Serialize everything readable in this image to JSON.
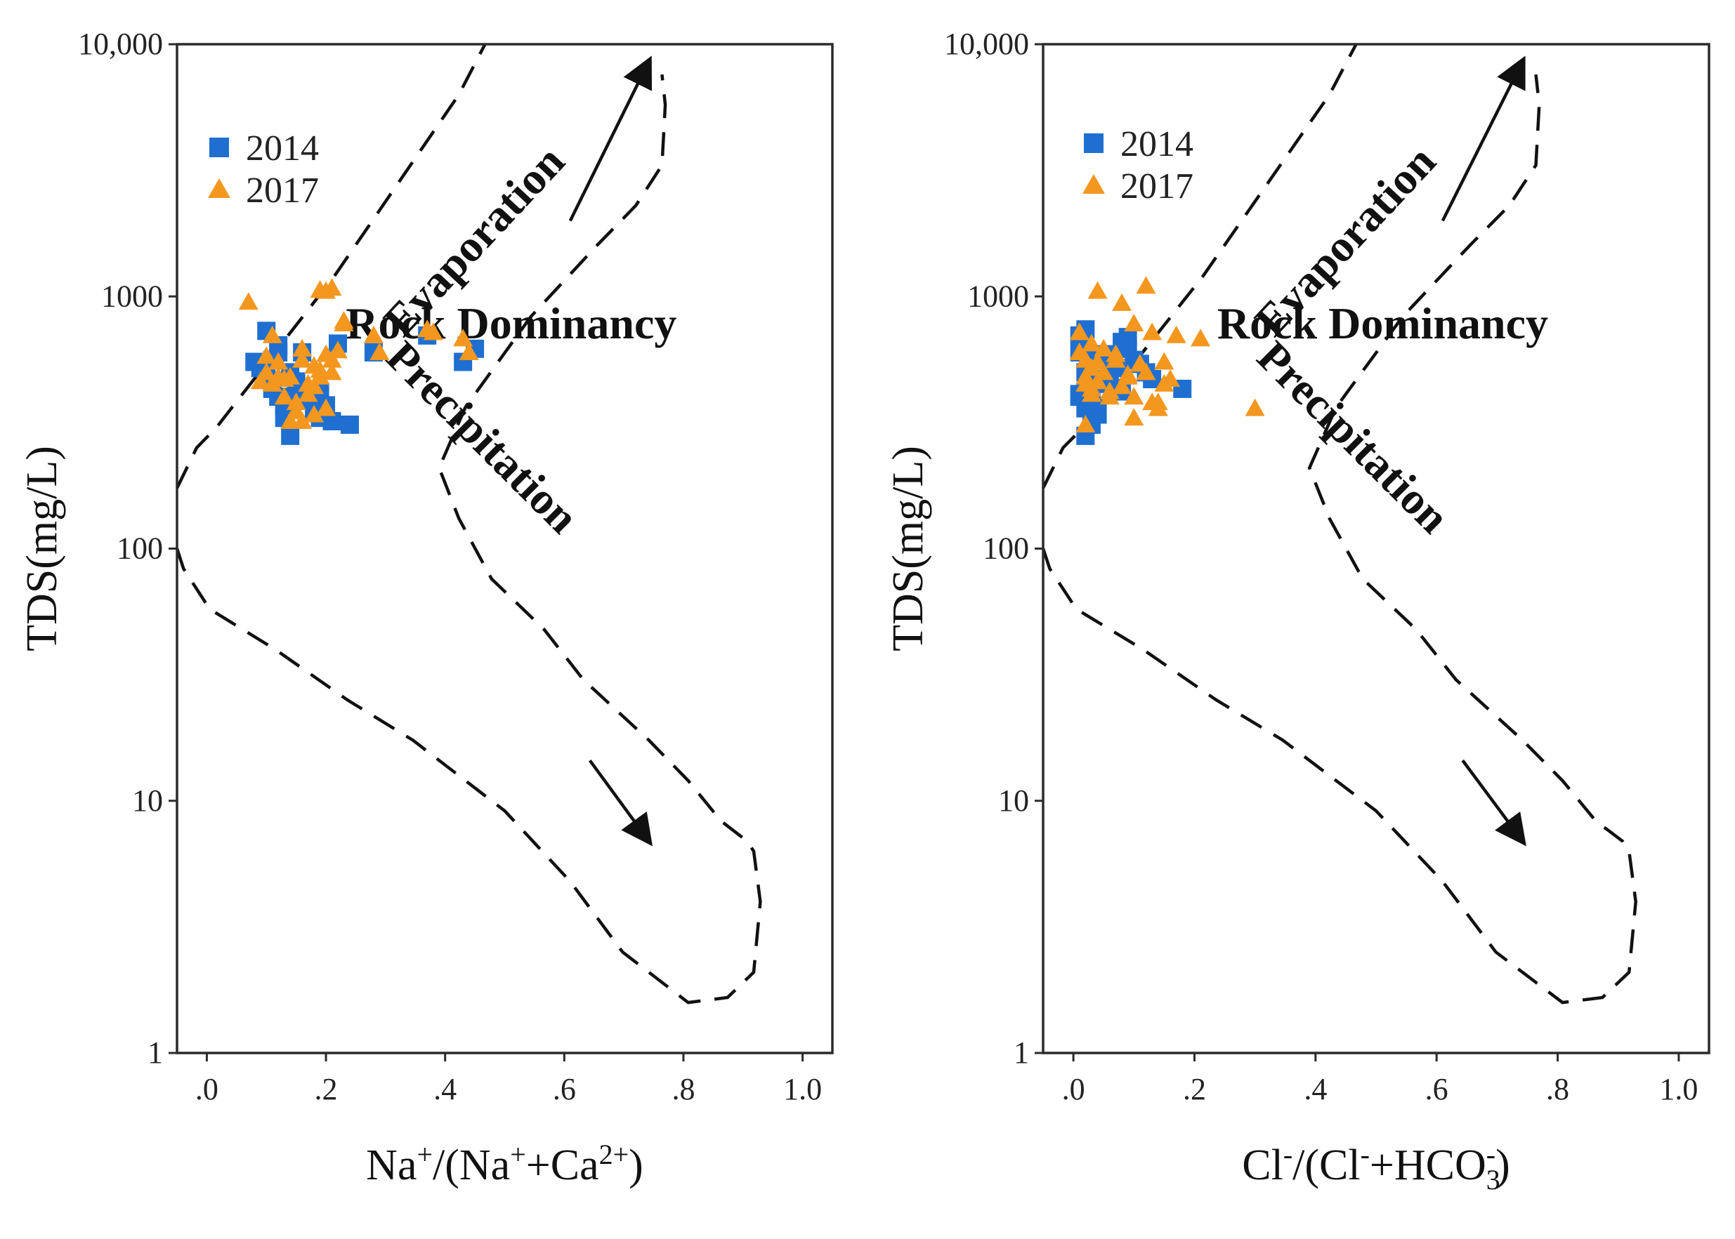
{
  "colors": {
    "s2014": "#1f6fd0",
    "s2017": "#f4971f",
    "ink": "#111111"
  },
  "chart_data": [
    {
      "type": "scatter",
      "panel": "left",
      "ylabel": "TDS(mg/L)",
      "xlabel_parts": {
        "a": "Na",
        "a_sup": "+",
        "b": "/(Na",
        "b_sup": "+",
        "c": "+Ca",
        "c_sup": "2+",
        "d": ")"
      },
      "x_scale": "linear",
      "y_scale": "log",
      "xlim": [
        -0.05,
        1.05
      ],
      "ylim": [
        1,
        10000
      ],
      "x_ticks": [
        0,
        0.2,
        0.4,
        0.6,
        0.8,
        1.0
      ],
      "x_tick_labels": [
        ".0",
        ".2",
        ".4",
        ".6",
        ".8",
        "1.0"
      ],
      "y_ticks": [
        1,
        10,
        100,
        1000,
        10000
      ],
      "y_tick_labels": [
        "1",
        "10",
        "100",
        "1000",
        "10,000"
      ],
      "legend": [
        "2014",
        "2017"
      ],
      "legend_position": "top-left",
      "annotations": {
        "evaporation": "Evaporation",
        "rock": "Rock Dominancy",
        "precipitation": "Precipitation"
      },
      "series": [
        {
          "name": "2014",
          "marker": "square",
          "x": [
            0.08,
            0.1,
            0.11,
            0.12,
            0.13,
            0.1,
            0.12,
            0.14,
            0.15,
            0.16,
            0.17,
            0.18,
            0.19,
            0.2,
            0.14,
            0.13,
            0.15,
            0.09,
            0.11,
            0.22,
            0.24,
            0.28,
            0.37,
            0.43,
            0.45,
            0.12,
            0.16,
            0.18,
            0.19,
            0.21
          ],
          "y": [
            550,
            480,
            430,
            400,
            370,
            730,
            640,
            500,
            460,
            430,
            390,
            350,
            330,
            370,
            280,
            330,
            420,
            520,
            560,
            650,
            310,
            600,
            700,
            550,
            620,
            600,
            600,
            380,
            420,
            320
          ]
        },
        {
          "name": "2017",
          "marker": "triangle",
          "x": [
            0.07,
            0.09,
            0.1,
            0.11,
            0.12,
            0.13,
            0.14,
            0.15,
            0.16,
            0.17,
            0.18,
            0.19,
            0.2,
            0.21,
            0.22,
            0.23,
            0.2,
            0.19,
            0.15,
            0.14,
            0.12,
            0.1,
            0.11,
            0.16,
            0.17,
            0.18,
            0.28,
            0.29,
            0.37,
            0.38,
            0.43,
            0.44,
            0.23,
            0.21,
            0.13,
            0.2,
            0.21,
            0.16,
            0.18,
            0.19
          ],
          "y": [
            950,
            460,
            500,
            700,
            550,
            400,
            480,
            380,
            620,
            450,
            530,
            480,
            590,
            560,
            610,
            780,
            1050,
            1060,
            350,
            320,
            480,
            580,
            450,
            320,
            410,
            340,
            700,
            600,
            740,
            720,
            680,
            600,
            800,
            500,
            470,
            360,
            1080,
            560,
            440,
            510
          ]
        }
      ]
    },
    {
      "type": "scatter",
      "panel": "right",
      "ylabel": "TDS(mg/L)",
      "xlabel_parts": {
        "a": "Cl",
        "a_sup": "-",
        "b": "/(Cl",
        "b_sup": "-",
        "c": "+HCO",
        "c_sub": "3",
        "c_sup": "-",
        "d": ")"
      },
      "x_scale": "linear",
      "y_scale": "log",
      "xlim": [
        -0.05,
        1.05
      ],
      "ylim": [
        1,
        10000
      ],
      "x_ticks": [
        0,
        0.2,
        0.4,
        0.6,
        0.8,
        1.0
      ],
      "x_tick_labels": [
        ".0",
        ".2",
        ".4",
        ".6",
        ".8",
        "1.0"
      ],
      "y_ticks": [
        1,
        10,
        100,
        1000,
        10000
      ],
      "y_tick_labels": [
        "1",
        "10",
        "100",
        "1000",
        "10,000"
      ],
      "legend": [
        "2014",
        "2017"
      ],
      "legend_position": "top-left",
      "annotations": {
        "evaporation": "Evaporation",
        "rock": "Rock Dominancy",
        "precipitation": "Precipitation"
      },
      "series": [
        {
          "name": "2014",
          "marker": "square",
          "x": [
            0.01,
            0.01,
            0.02,
            0.02,
            0.03,
            0.03,
            0.04,
            0.05,
            0.06,
            0.08,
            0.09,
            0.1,
            0.11,
            0.12,
            0.13,
            0.18,
            0.02,
            0.03,
            0.01,
            0.04,
            0.06,
            0.07,
            0.09,
            0.02,
            0.05,
            0.03,
            0.01,
            0.02,
            0.08,
            0.04
          ],
          "y": [
            700,
            600,
            500,
            420,
            380,
            330,
            360,
            450,
            520,
            660,
            620,
            560,
            540,
            500,
            470,
            430,
            280,
            310,
            400,
            340,
            460,
            520,
            690,
            740,
            590,
            470,
            410,
            360,
            420,
            560
          ]
        },
        {
          "name": "2017",
          "marker": "triangle",
          "x": [
            0.01,
            0.01,
            0.02,
            0.02,
            0.03,
            0.03,
            0.04,
            0.04,
            0.05,
            0.06,
            0.07,
            0.08,
            0.09,
            0.1,
            0.11,
            0.12,
            0.13,
            0.14,
            0.15,
            0.16,
            0.17,
            0.21,
            0.3,
            0.05,
            0.08,
            0.12,
            0.1,
            0.02,
            0.03,
            0.06,
            0.14,
            0.15,
            0.01,
            0.04,
            0.07,
            0.09,
            0.03,
            0.13,
            0.1,
            0.02
          ],
          "y": [
            720,
            600,
            560,
            480,
            520,
            430,
            460,
            1050,
            500,
            400,
            560,
            940,
            480,
            780,
            540,
            1100,
            380,
            360,
            550,
            470,
            700,
            680,
            360,
            620,
            440,
            500,
            330,
            310,
            650,
            420,
            380,
            450,
            600,
            550,
            590,
            490,
            410,
            720,
            400,
            450
          ]
        }
      ]
    }
  ]
}
